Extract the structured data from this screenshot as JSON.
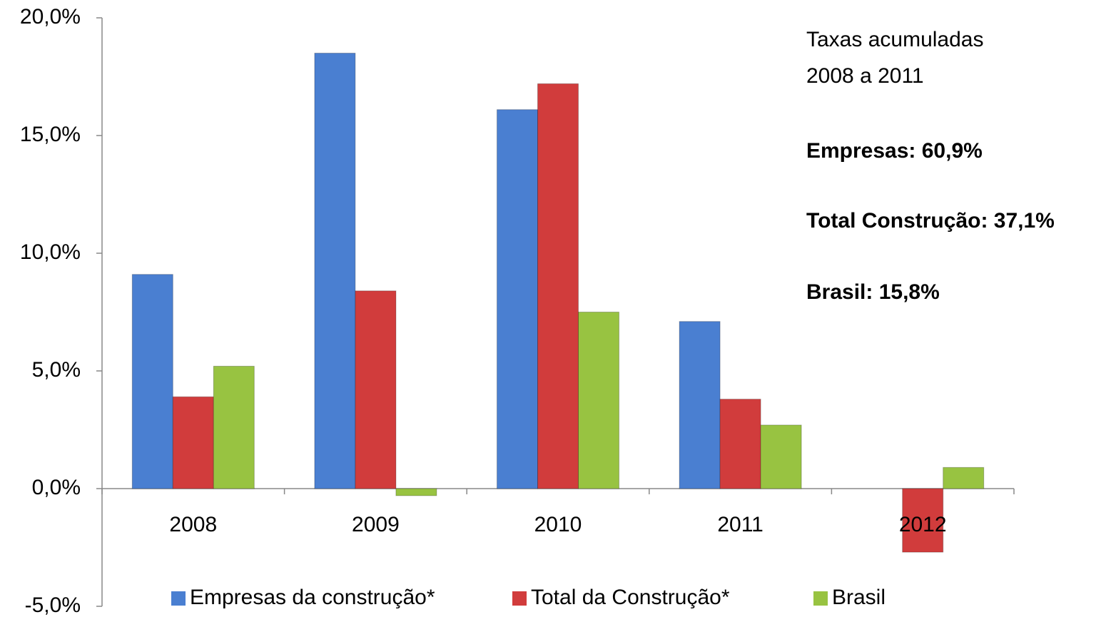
{
  "chart_data": {
    "type": "bar",
    "categories": [
      "2008",
      "2009",
      "2010",
      "2011",
      "2012"
    ],
    "series": [
      {
        "name": "Empresas da construção*",
        "color": "#4a7fd1",
        "values": [
          9.1,
          18.5,
          16.1,
          7.1,
          null
        ]
      },
      {
        "name": "Total da Construção*",
        "color": "#d13c3c",
        "values": [
          3.9,
          8.4,
          17.2,
          3.8,
          -2.7
        ]
      },
      {
        "name": "Brasil",
        "color": "#98c341",
        "values": [
          5.2,
          -0.3,
          7.5,
          2.7,
          0.9
        ]
      }
    ],
    "ylim": [
      -5,
      20
    ],
    "yticks": [
      {
        "value": -5,
        "label": "-5,0%"
      },
      {
        "value": 0,
        "label": "0,0%"
      },
      {
        "value": 5,
        "label": "5,0%"
      },
      {
        "value": 10,
        "label": "10,0%"
      },
      {
        "value": 15,
        "label": "15,0%"
      },
      {
        "value": 20,
        "label": "20,0%"
      }
    ],
    "grid": false,
    "legend": "bottom",
    "annotations": [
      "Taxas acumuladas",
      "2008 a 2011",
      "Empresas: 60,9%",
      "Total Construção: 37,1%",
      "Brasil: 15,8%"
    ]
  }
}
